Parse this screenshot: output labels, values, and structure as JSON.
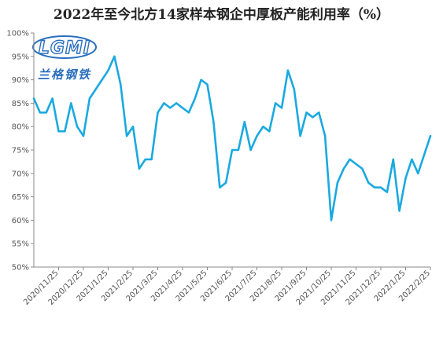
{
  "logo": {
    "main": "LGMI",
    "sub": "兰格钢铁"
  },
  "colors": {
    "line": "#1aa9e0",
    "axis": "#888888",
    "text": "#555555"
  },
  "chart_data": {
    "type": "line",
    "title": "2022年至今北方14家样本钢企中厚板产能利用率（%）",
    "xlabel": "",
    "ylabel": "",
    "ylim": [
      50,
      100
    ],
    "y_ticks": [
      "50%",
      "55%",
      "60%",
      "65%",
      "70%",
      "75%",
      "80%",
      "85%",
      "90%",
      "95%",
      "100%"
    ],
    "y_tick_values": [
      50,
      55,
      60,
      65,
      70,
      75,
      80,
      85,
      90,
      95,
      100
    ],
    "x_tick_labels": [
      "2020/11/25",
      "2020/12/25",
      "2021/1/25",
      "2021/2/25",
      "2021/3/25",
      "2021/4/25",
      "2021/5/25",
      "2021/6/25",
      "2021/7/25",
      "2021/8/25",
      "2021/9/25",
      "2021/10/25",
      "2021/11/25",
      "2021/12/25",
      "2022/1/25",
      "2022/2/25"
    ],
    "grid": false,
    "legend": "none",
    "series": [
      {
        "values": [
          86,
          83,
          83,
          86,
          79,
          79,
          85,
          80,
          78,
          86,
          88,
          90,
          92,
          95,
          89,
          78,
          80,
          71,
          73,
          73,
          83,
          85,
          84,
          85,
          84,
          83,
          86,
          90,
          89,
          81,
          67,
          68,
          75,
          75,
          81,
          75,
          78,
          80,
          79,
          85,
          84,
          92,
          88,
          78,
          83,
          82,
          83,
          78,
          60,
          68,
          71,
          73,
          72,
          71,
          68,
          67,
          67,
          66,
          73,
          62,
          69,
          73,
          70,
          74,
          78
        ]
      }
    ]
  }
}
